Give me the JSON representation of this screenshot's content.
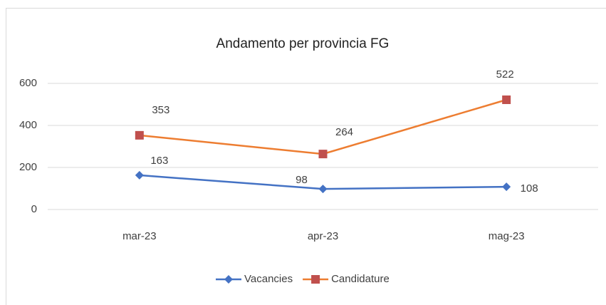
{
  "chart_data": {
    "type": "line",
    "title": "Andamento per provincia FG",
    "categories": [
      "mar-23",
      "apr-23",
      "mag-23"
    ],
    "series": [
      {
        "name": "Vacancies",
        "color": "#4472c4",
        "marker_color": "#4472c4",
        "marker": "diamond",
        "values": [
          163,
          98,
          108
        ]
      },
      {
        "name": "Candidature",
        "color": "#ed7d31",
        "marker_color": "#c0504d",
        "marker": "square",
        "values": [
          353,
          264,
          522
        ]
      }
    ],
    "ylim": [
      0,
      600
    ],
    "yticks": [
      0,
      200,
      400,
      600
    ],
    "grid": true,
    "legend": "bottom"
  }
}
